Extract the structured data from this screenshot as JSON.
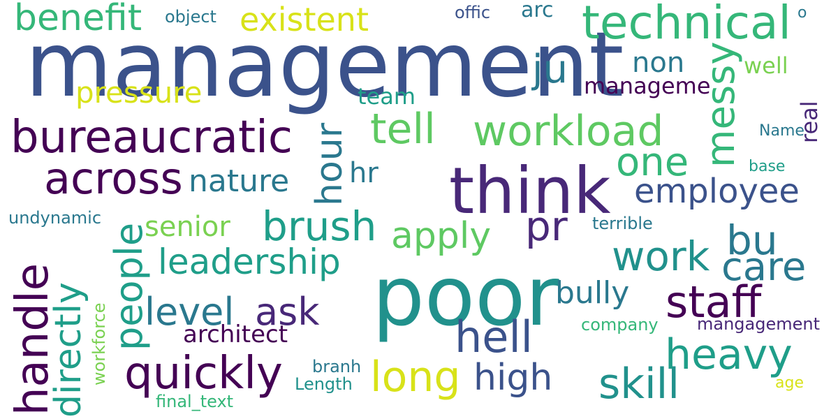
{
  "words": {
    "management": "management",
    "poor": "poor",
    "think": "think",
    "technical": "technical",
    "bureaucratic": "bureaucratic",
    "across": "across",
    "workload": "workload",
    "tell": "tell",
    "handle": "handle",
    "quickly": "quickly",
    "staff": "staff",
    "people": "people",
    "leadership": "leadership",
    "brush": "brush",
    "benefit": "benefit",
    "existent": "existent",
    "pressure": "pressure",
    "messy": "messy",
    "hour": "hour",
    "one": "one",
    "employee": "employee",
    "care": "care",
    "work": "work",
    "bu": "bu",
    "pr": "pr",
    "long": "long",
    "hell": "hell",
    "high": "high",
    "skill": "skill",
    "heavy": "heavy",
    "level": "level",
    "ask": "ask",
    "apply": "apply",
    "directly": "directly",
    "senior": "senior",
    "nature": "nature",
    "architect": "architect",
    "bully": "bully",
    "ju": "ju",
    "non": "non",
    "manageme": "manageme",
    "team": "team",
    "well": "well",
    "real": "real",
    "hr": "hr",
    "undynamic": "undynamic",
    "terrible": "terrible",
    "company": "company",
    "mangagement": "mangagement",
    "workforce": "workforce",
    "final_text": "final_text",
    "branh": "branh",
    "Length": "Length",
    "age": "age",
    "object": "object",
    "offic": "offic",
    "arc": "arc",
    "o": "o",
    "Name": "Name",
    "base": "base"
  },
  "palette": {
    "blue": "#3b528b",
    "teal": "#21918c",
    "dark_purple": "#440154",
    "purple": "#482878",
    "light_green": "#5ec962",
    "yellow": "#fde725",
    "blue_teal": "#2a788e",
    "green": "#35b779",
    "yellow_green": "#7ad151",
    "background": "#ffffff"
  }
}
